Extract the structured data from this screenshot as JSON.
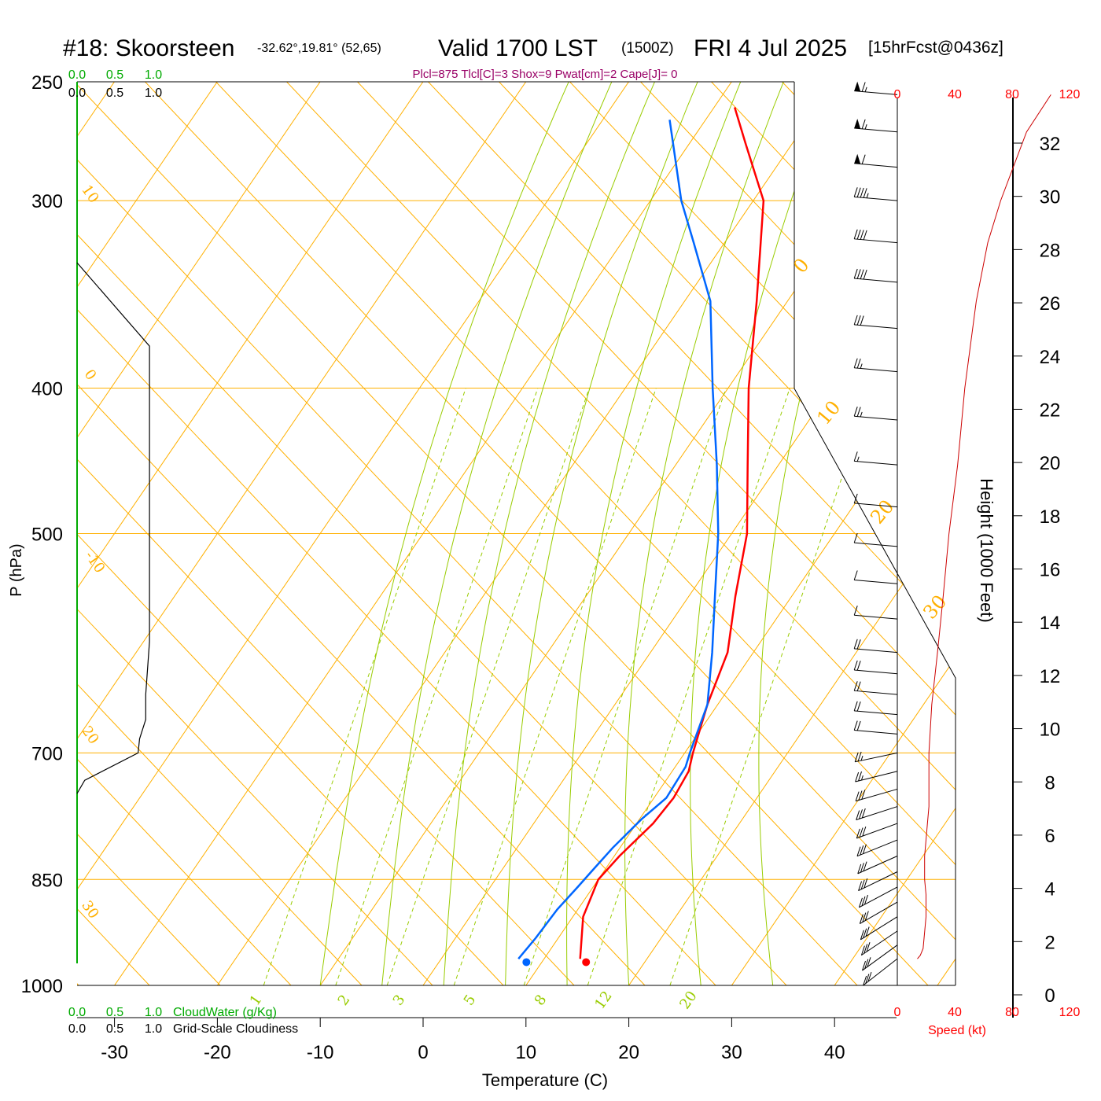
{
  "header": {
    "station": "#18: Skoorsteen",
    "coords": "-32.62°,19.81° (52,65)",
    "valid": "Valid 1700 LST",
    "utc": "(1500Z)",
    "date": "FRI 4 Jul 2025",
    "forecast": "[15hrFcst@0436z]",
    "indices": "Plcl=875 Tlcl[C]=3 Shox=9 Pwat[cm]=2 Cape[J]= 0"
  },
  "colors": {
    "temperature": "#ff0000",
    "dewpoint": "#0066ff",
    "isotherm": "#ffb000",
    "dry_adiabat": "#ffb000",
    "moist_adiabat": "#99cc00",
    "mixing_ratio": "#99cc00",
    "cloud_scale": "#00aa00",
    "indices_text": "#990066",
    "speed": "#ff0000"
  },
  "chart_data": {
    "type": "line",
    "xlabel": "Temperature (C)",
    "ylabel": "P (hPa)",
    "xlim": [
      -35,
      40
    ],
    "ylim": [
      1000,
      250
    ],
    "y_scale": "log",
    "x_ticks": [
      "-30",
      "-20",
      "-10",
      "0",
      "10",
      "20",
      "30",
      "40"
    ],
    "x_tick_values": [
      -30,
      -20,
      -10,
      0,
      10,
      20,
      30,
      40
    ],
    "y_ticks": [
      "250",
      "300",
      "400",
      "500",
      "700",
      "850",
      "1000"
    ],
    "y_tick_values": [
      250,
      300,
      400,
      500,
      700,
      850,
      1000
    ],
    "isotherm_labels": [
      "0",
      "10",
      "20",
      "30"
    ],
    "isotherm_label_values": [
      0,
      10,
      20,
      30
    ],
    "isotherm_left_labels": [
      "10",
      "0",
      "-10",
      "20",
      "30"
    ],
    "mixing_ratio_labels": [
      "1",
      "2",
      "3",
      "5",
      "8",
      "12",
      "20"
    ],
    "mixing_ratio_values": [
      1,
      2,
      3,
      5,
      8,
      12,
      20
    ],
    "series": [
      {
        "key": "temperature",
        "points": [
          [
            13.5,
            960
          ],
          [
            11,
            900
          ],
          [
            10,
            850
          ],
          [
            10.5,
            820
          ],
          [
            11.6,
            780
          ],
          [
            11.9,
            750
          ],
          [
            11.6,
            720
          ],
          [
            10.8,
            700
          ],
          [
            9,
            650
          ],
          [
            7.5,
            600
          ],
          [
            4.5,
            550
          ],
          [
            1.5,
            500
          ],
          [
            -3,
            450
          ],
          [
            -8,
            400
          ],
          [
            -13,
            350
          ],
          [
            -19,
            300
          ],
          [
            -24.5,
            275
          ],
          [
            -28,
            260
          ]
        ]
      },
      {
        "key": "dewpoint",
        "points": [
          [
            7.5,
            960
          ],
          [
            7.8,
            930
          ],
          [
            8,
            890
          ],
          [
            8.5,
            860
          ],
          [
            8.8,
            840
          ],
          [
            9.3,
            810
          ],
          [
            10.2,
            775
          ],
          [
            11.2,
            750
          ],
          [
            11,
            715
          ],
          [
            10.5,
            700
          ],
          [
            9,
            650
          ],
          [
            6,
            600
          ],
          [
            2.5,
            550
          ],
          [
            -1.3,
            500
          ],
          [
            -6,
            450
          ],
          [
            -11.5,
            400
          ],
          [
            -17.5,
            350
          ],
          [
            -23,
            320
          ],
          [
            -27,
            300
          ],
          [
            -33.5,
            265
          ]
        ]
      }
    ],
    "dewpoint_marker": [
      8.5,
      965
    ],
    "temperature_marker": [
      14.3,
      965
    ],
    "cloud_water_scale": {
      "label": "CloudWater (g/Kg)",
      "ticks": [
        "0.0",
        "0.5",
        "1.0"
      ]
    },
    "cloudiness_scale": {
      "label": "Grid-Scale Cloudiness",
      "ticks": [
        "0.0",
        "0.5",
        "1.0"
      ]
    },
    "cloud_profile": [
      [
        0,
        330
      ],
      [
        0.95,
        375
      ],
      [
        0.95,
        500
      ],
      [
        0.95,
        590
      ],
      [
        0.9,
        640
      ],
      [
        0.9,
        665
      ],
      [
        0.82,
        685
      ],
      [
        0.8,
        700
      ],
      [
        0.1,
        730
      ],
      [
        0,
        745
      ]
    ],
    "wind_barbs": {
      "pressures": [
        255,
        270,
        285,
        300,
        320,
        340,
        365,
        390,
        420,
        450,
        480,
        510,
        540,
        570,
        600,
        620,
        640,
        660,
        680,
        700,
        720,
        740,
        760,
        780,
        800,
        820,
        840,
        860,
        880,
        900,
        920,
        940,
        960
      ],
      "speeds": [
        65,
        65,
        60,
        45,
        40,
        40,
        30,
        25,
        25,
        15,
        10,
        10,
        10,
        10,
        20,
        20,
        20,
        20,
        20,
        25,
        25,
        30,
        30,
        30,
        30,
        30,
        30,
        30,
        30,
        30,
        30,
        30,
        30
      ]
    },
    "height_axis": {
      "label": "Height (1000 Feet)",
      "ticks": [
        "0",
        "2",
        "4",
        "6",
        "8",
        "10",
        "12",
        "14",
        "16",
        "18",
        "20",
        "22",
        "24",
        "26",
        "28",
        "30",
        "32"
      ],
      "tick_values": [
        0,
        2,
        4,
        6,
        8,
        10,
        12,
        14,
        16,
        18,
        20,
        22,
        24,
        26,
        28,
        30,
        32
      ]
    },
    "speed_axis": {
      "label": "Speed (kt)",
      "ticks": [
        "0",
        "40",
        "80",
        "120"
      ],
      "tick_values": [
        0,
        40,
        80,
        120
      ]
    },
    "speed_profile": [
      [
        14,
        960
      ],
      [
        16,
        955
      ],
      [
        18,
        945
      ],
      [
        20,
        900
      ],
      [
        20,
        870
      ],
      [
        19,
        850
      ],
      [
        19,
        820
      ],
      [
        20,
        800
      ],
      [
        21,
        780
      ],
      [
        22,
        760
      ],
      [
        22,
        740
      ],
      [
        22,
        700
      ],
      [
        24,
        650
      ],
      [
        28,
        600
      ],
      [
        32,
        550
      ],
      [
        36,
        500
      ],
      [
        42,
        450
      ],
      [
        47,
        400
      ],
      [
        55,
        350
      ],
      [
        63,
        320
      ],
      [
        72,
        300
      ],
      [
        90,
        270
      ],
      [
        107,
        255
      ]
    ]
  }
}
